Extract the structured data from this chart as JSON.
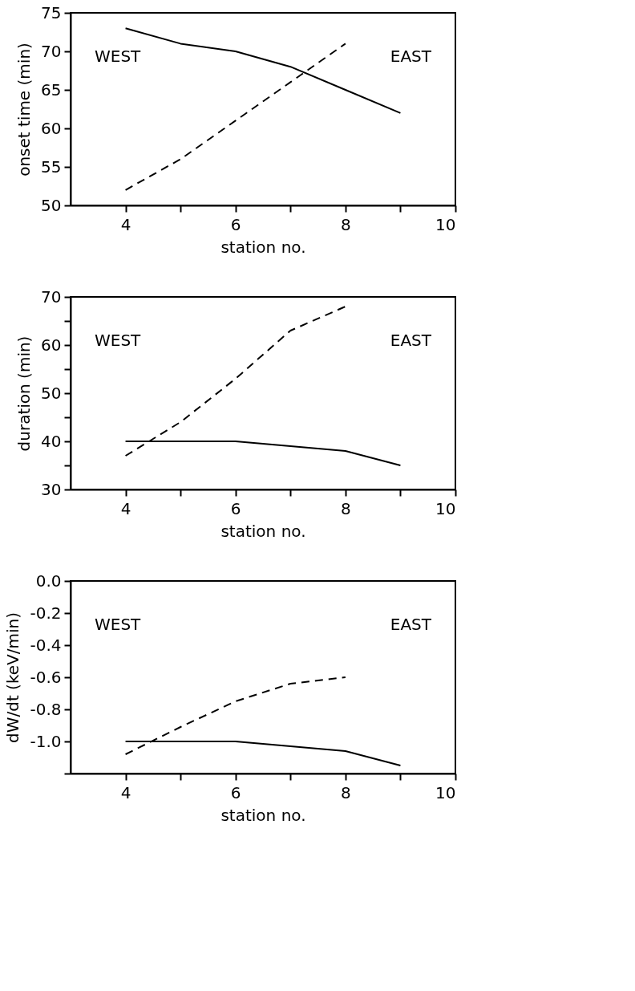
{
  "chart_data": [
    {
      "type": "line",
      "xlabel": "station no.",
      "ylabel": "onset time (min)",
      "xlim": [
        3,
        10
      ],
      "xticks": [
        4,
        {
          "value": 5,
          "label": null
        },
        6,
        {
          "value": 7,
          "label": null
        },
        8,
        {
          "value": 9,
          "label": null
        },
        10
      ],
      "ylim": [
        50,
        75
      ],
      "yticks": [
        50,
        55,
        60,
        65,
        70,
        75
      ],
      "x": [
        4,
        5,
        6,
        7,
        8,
        9
      ],
      "grid": false,
      "annotations": [
        "WEST",
        "EAST"
      ],
      "series": [
        {
          "color": "#000000",
          "line_style": "solid",
          "values": [
            73,
            71,
            70,
            68,
            65,
            62
          ]
        },
        {
          "color": "#000000",
          "line_style": "dashed",
          "values": [
            52,
            56,
            61,
            66,
            71,
            null
          ]
        }
      ]
    },
    {
      "type": "line",
      "xlabel": "station no.",
      "ylabel": "duration (min)",
      "xlim": [
        3,
        10
      ],
      "xticks": [
        4,
        {
          "value": 5,
          "label": null
        },
        6,
        {
          "value": 7,
          "label": null
        },
        8,
        {
          "value": 9,
          "label": null
        },
        10
      ],
      "ylim": [
        30,
        70
      ],
      "yticks": [
        30,
        {
          "value": 35,
          "label": null
        },
        40,
        {
          "value": 45,
          "label": null
        },
        50,
        {
          "value": 55,
          "label": null
        },
        60,
        {
          "value": 65,
          "label": null
        },
        70
      ],
      "x": [
        4,
        5,
        6,
        7,
        8,
        9
      ],
      "grid": false,
      "annotations": [
        "WEST",
        "EAST"
      ],
      "series": [
        {
          "color": "#000000",
          "line_style": "solid",
          "values": [
            40,
            40,
            40,
            39,
            38,
            35
          ]
        },
        {
          "color": "#000000",
          "line_style": "dashed",
          "values": [
            37,
            44,
            53,
            63,
            68,
            null
          ]
        }
      ]
    },
    {
      "type": "line",
      "xlabel": "station no.",
      "ylabel": "dW/dt (keV/min)",
      "xlim": [
        3,
        10
      ],
      "xticks": [
        4,
        {
          "value": 5,
          "label": null
        },
        6,
        {
          "value": 7,
          "label": null
        },
        8,
        {
          "value": 9,
          "label": null
        },
        10
      ],
      "ylim": [
        -1.2,
        0
      ],
      "yticks": [
        {
          "value": -1.2,
          "label": null
        },
        {
          "value": -1.0,
          "label": "-1.0"
        },
        -0.8,
        -0.6,
        -0.4,
        -0.2,
        {
          "value": 0,
          "label": "0.0"
        }
      ],
      "x": [
        4,
        5,
        6,
        7,
        8,
        9
      ],
      "grid": false,
      "annotations": [
        "WEST",
        "EAST"
      ],
      "series": [
        {
          "color": "#000000",
          "line_style": "solid",
          "values": [
            -1.0,
            -1.0,
            -1.0,
            -1.03,
            -1.06,
            -1.15
          ]
        },
        {
          "color": "#000000",
          "line_style": "dashed",
          "values": [
            -1.08,
            -0.91,
            -0.75,
            -0.64,
            -0.6,
            null
          ]
        }
      ]
    }
  ]
}
